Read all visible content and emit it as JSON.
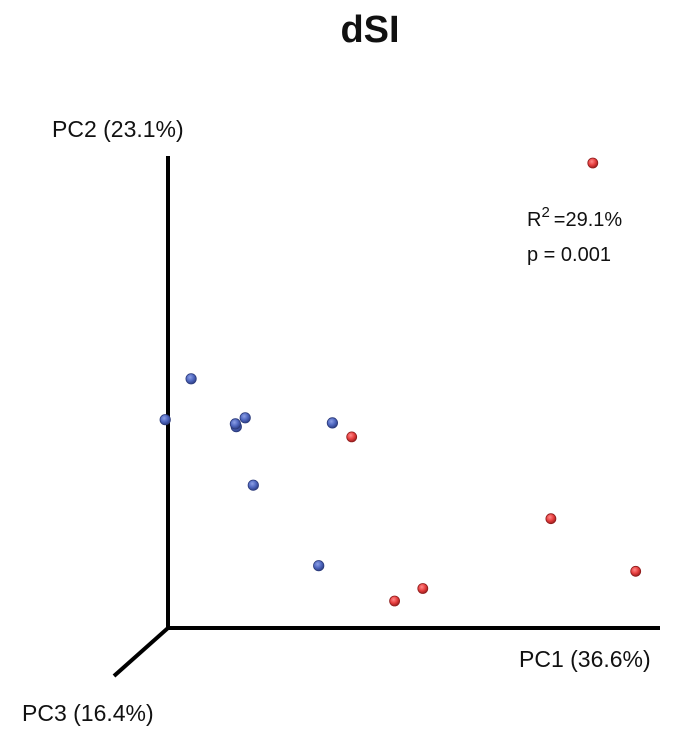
{
  "chart_data": {
    "type": "scatter",
    "title": "dSI",
    "axes": {
      "x_label": "PC1 (36.6%)",
      "y_label": "PC2 (23.1%)",
      "z_label": "PC3 (16.4%)"
    },
    "annotation": {
      "r_squared_prefix": "R",
      "r_squared_superscript": "2",
      "r_squared_value": "=29.1%",
      "p_value": "p = 0.001"
    },
    "grid": false,
    "series": [
      {
        "color": "#5068c0",
        "points": [
          {
            "x": -0.006,
            "y": 0.448
          },
          {
            "x": 0.049,
            "y": 0.536
          },
          {
            "x": 0.145,
            "y": 0.433
          },
          {
            "x": 0.164,
            "y": 0.452
          },
          {
            "x": 0.143,
            "y": 0.439
          },
          {
            "x": 0.181,
            "y": 0.307
          },
          {
            "x": 0.349,
            "y": 0.441
          },
          {
            "x": 0.32,
            "y": 0.134
          }
        ]
      },
      {
        "color": "#e84040",
        "points": [
          {
            "x": 0.902,
            "y": 1.0
          },
          {
            "x": 0.39,
            "y": 0.411
          },
          {
            "x": 0.813,
            "y": 0.235
          },
          {
            "x": 0.993,
            "y": 0.122
          },
          {
            "x": 0.541,
            "y": 0.085
          },
          {
            "x": 0.481,
            "y": 0.058
          }
        ]
      }
    ]
  }
}
